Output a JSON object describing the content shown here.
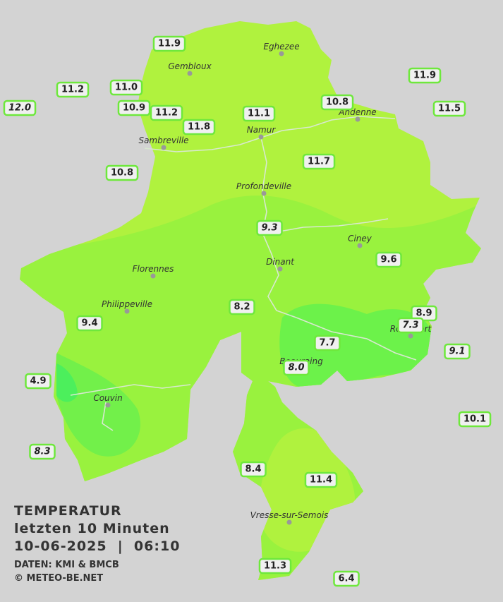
{
  "map": {
    "cities": [
      {
        "name": "Eghezee"
      },
      {
        "name": "Gembloux"
      },
      {
        "name": "Andenne"
      },
      {
        "name": "Namur"
      },
      {
        "name": "Sambreville"
      },
      {
        "name": "Profondeville"
      },
      {
        "name": "Ciney"
      },
      {
        "name": "Dinant"
      },
      {
        "name": "Florennes"
      },
      {
        "name": "Philippeville"
      },
      {
        "name": "Rochefort"
      },
      {
        "name": "Beauraing"
      },
      {
        "name": "Couvin"
      },
      {
        "name": "Vresse-sur-Semois"
      }
    ],
    "stations": [
      {
        "value": "11.9",
        "italic": false
      },
      {
        "value": "11.2",
        "italic": false
      },
      {
        "value": "12.0",
        "italic": true
      },
      {
        "value": "11.0",
        "italic": false
      },
      {
        "value": "10.9",
        "italic": false
      },
      {
        "value": "11.2",
        "italic": false
      },
      {
        "value": "11.8",
        "italic": false
      },
      {
        "value": "11.1",
        "italic": false
      },
      {
        "value": "10.8",
        "italic": false
      },
      {
        "value": "11.9",
        "italic": false
      },
      {
        "value": "11.5",
        "italic": false
      },
      {
        "value": "10.8",
        "italic": false
      },
      {
        "value": "11.7",
        "italic": false
      },
      {
        "value": "9.3",
        "italic": true
      },
      {
        "value": "9.6",
        "italic": false
      },
      {
        "value": "8.2",
        "italic": false
      },
      {
        "value": "9.4",
        "italic": false
      },
      {
        "value": "8.9",
        "italic": false
      },
      {
        "value": "7.3",
        "italic": true
      },
      {
        "value": "7.7",
        "italic": false
      },
      {
        "value": "9.1",
        "italic": true
      },
      {
        "value": "8.0",
        "italic": true
      },
      {
        "value": "4.9",
        "italic": false
      },
      {
        "value": "10.1",
        "italic": false
      },
      {
        "value": "8.3",
        "italic": true
      },
      {
        "value": "8.4",
        "italic": false
      },
      {
        "value": "11.4",
        "italic": false
      },
      {
        "value": "11.3",
        "italic": false
      },
      {
        "value": "6.4",
        "italic": false
      }
    ]
  },
  "legend": {
    "title": "TEMPERATUR",
    "subtitle": "letzten 10 Minuten",
    "datetime": "10-06-2025  |  06:10",
    "source": "DATEN: KMI & BMCB",
    "copyright": "© METEO-BE.NET"
  }
}
